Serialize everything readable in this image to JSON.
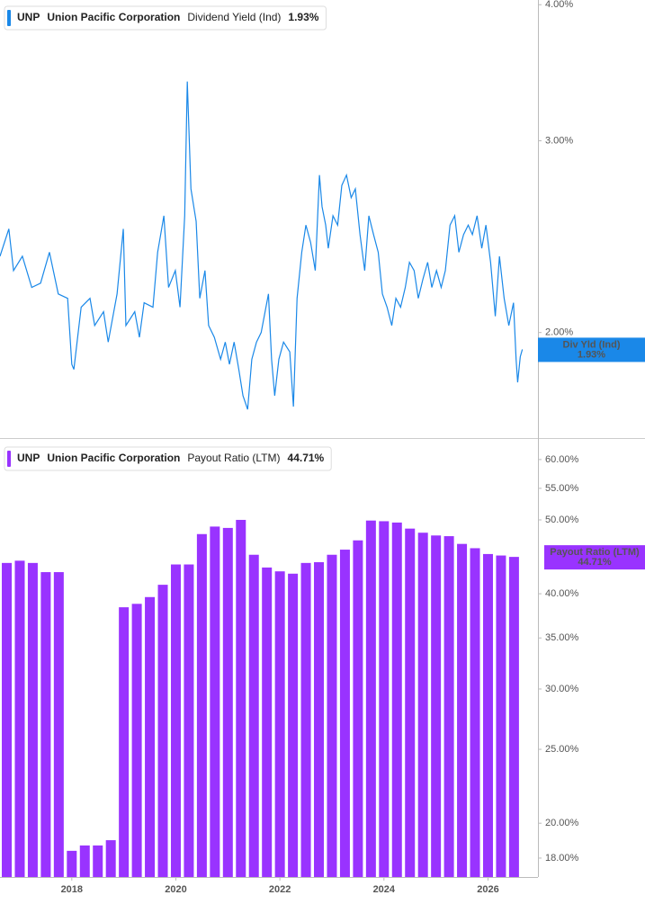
{
  "chart_data": [
    {
      "type": "line",
      "ticker": "UNP",
      "company": "Union Pacific Corporation",
      "xlim": [
        2016.62,
        2026.96
      ],
      "ylim": [
        1.6,
        4.04
      ],
      "log_scale": true,
      "yticks": [
        {
          "value": 2,
          "label": "2.00%"
        },
        {
          "value": 3,
          "label": "3.00%"
        },
        {
          "value": 4,
          "label": "4.00%"
        }
      ],
      "series": [
        {
          "name": "Dividend Yield (Ind)",
          "short_name": "Div Yld (Ind)",
          "color": "#1a88e8",
          "last_label": "1.93%",
          "x": [
            2016.62,
            2016.79,
            2016.88,
            2017.05,
            2017.23,
            2017.4,
            2017.57,
            2017.74,
            2017.92,
            2018.0,
            2018.04,
            2018.18,
            2018.35,
            2018.44,
            2018.61,
            2018.7,
            2018.87,
            2018.99,
            2019.04,
            2019.21,
            2019.3,
            2019.39,
            2019.56,
            2019.65,
            2019.77,
            2019.86,
            2019.99,
            2020.08,
            2020.17,
            2020.22,
            2020.29,
            2020.39,
            2020.46,
            2020.56,
            2020.63,
            2020.74,
            2020.86,
            2020.95,
            2021.03,
            2021.12,
            2021.21,
            2021.29,
            2021.38,
            2021.46,
            2021.55,
            2021.64,
            2021.78,
            2021.84,
            2021.9,
            2021.98,
            2022.07,
            2022.19,
            2022.26,
            2022.33,
            2022.42,
            2022.5,
            2022.59,
            2022.68,
            2022.76,
            2022.81,
            2022.88,
            2022.93,
            2023.02,
            2023.11,
            2023.19,
            2023.28,
            2023.37,
            2023.45,
            2023.54,
            2023.63,
            2023.71,
            2023.8,
            2023.89,
            2023.97,
            2024.06,
            2024.15,
            2024.23,
            2024.32,
            2024.41,
            2024.49,
            2024.58,
            2024.66,
            2024.75,
            2024.84,
            2024.92,
            2025.01,
            2025.1,
            2025.18,
            2025.27,
            2025.36,
            2025.44,
            2025.53,
            2025.62,
            2025.7,
            2025.79,
            2025.88,
            2025.96,
            2026.05,
            2026.14,
            2026.22,
            2026.31,
            2026.4,
            2026.49,
            2026.54,
            2026.57,
            2026.62,
            2026.66
          ],
          "values": [
            2.35,
            2.49,
            2.28,
            2.35,
            2.2,
            2.22,
            2.37,
            2.17,
            2.15,
            1.87,
            1.85,
            2.11,
            2.15,
            2.03,
            2.09,
            1.96,
            2.17,
            2.49,
            2.03,
            2.09,
            1.98,
            2.13,
            2.11,
            2.37,
            2.56,
            2.2,
            2.28,
            2.11,
            2.56,
            3.4,
            2.71,
            2.53,
            2.15,
            2.28,
            2.03,
            1.98,
            1.89,
            1.96,
            1.87,
            1.96,
            1.85,
            1.75,
            1.7,
            1.89,
            1.96,
            2.0,
            2.17,
            1.89,
            1.75,
            1.89,
            1.96,
            1.92,
            1.71,
            2.15,
            2.37,
            2.51,
            2.42,
            2.28,
            2.79,
            2.61,
            2.51,
            2.39,
            2.56,
            2.51,
            2.73,
            2.79,
            2.66,
            2.71,
            2.46,
            2.28,
            2.56,
            2.46,
            2.37,
            2.17,
            2.11,
            2.03,
            2.15,
            2.11,
            2.2,
            2.32,
            2.28,
            2.15,
            2.24,
            2.32,
            2.2,
            2.28,
            2.2,
            2.28,
            2.51,
            2.56,
            2.37,
            2.46,
            2.51,
            2.46,
            2.56,
            2.39,
            2.51,
            2.32,
            2.07,
            2.35,
            2.15,
            2.03,
            2.13,
            1.89,
            1.8,
            1.9,
            1.93
          ]
        }
      ]
    },
    {
      "type": "bar",
      "ticker": "UNP",
      "company": "Union Pacific Corporation",
      "xlim": [
        2016.62,
        2026.96
      ],
      "xticks": [
        2018,
        2020,
        2022,
        2024,
        2026
      ],
      "ylim": [
        17,
        63.5
      ],
      "log_scale": true,
      "yticks": [
        {
          "value": 18,
          "label": "18.00%"
        },
        {
          "value": 20,
          "label": "20.00%"
        },
        {
          "value": 25,
          "label": "25.00%"
        },
        {
          "value": 30,
          "label": "30.00%"
        },
        {
          "value": 35,
          "label": "35.00%"
        },
        {
          "value": 40,
          "label": "40.00%"
        },
        {
          "value": 50,
          "label": "50.00%"
        },
        {
          "value": 55,
          "label": "55.00%"
        },
        {
          "value": 60,
          "label": "60.00%"
        }
      ],
      "series": [
        {
          "name": "Payout Ratio (LTM)",
          "color": "#9933ff",
          "last_label": "44.71%",
          "x": [
            2016.75,
            2017.0,
            2017.25,
            2017.5,
            2017.75,
            2018.0,
            2018.25,
            2018.5,
            2018.75,
            2019.0,
            2019.25,
            2019.5,
            2019.75,
            2020.0,
            2020.25,
            2020.5,
            2020.75,
            2021.0,
            2021.25,
            2021.5,
            2021.75,
            2022.0,
            2022.25,
            2022.5,
            2022.75,
            2023.0,
            2023.25,
            2023.5,
            2023.75,
            2024.0,
            2024.25,
            2024.5,
            2024.75,
            2025.0,
            2025.25,
            2025.5,
            2025.75,
            2026.0,
            2026.25,
            2026.5
          ],
          "values": [
            43.9,
            44.2,
            43.9,
            42.7,
            42.7,
            18.4,
            18.7,
            18.7,
            19.0,
            38.4,
            38.8,
            39.6,
            41.1,
            43.7,
            43.7,
            47.9,
            49.0,
            48.8,
            50.0,
            45.0,
            43.3,
            42.8,
            42.5,
            43.9,
            44.0,
            45.0,
            45.7,
            47.0,
            49.9,
            49.8,
            49.6,
            48.7,
            48.1,
            47.7,
            47.6,
            46.5,
            45.9,
            45.1,
            44.9,
            44.71
          ]
        }
      ]
    }
  ]
}
